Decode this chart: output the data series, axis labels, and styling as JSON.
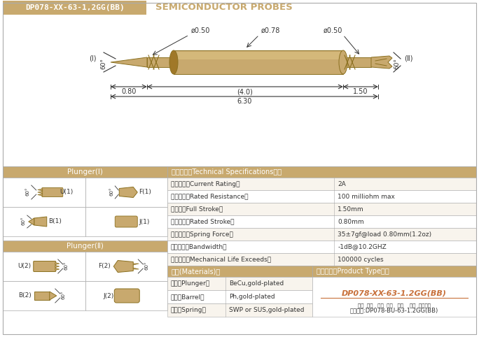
{
  "title_box_text": "DP078-XX-63-1,2GG(BB)",
  "title_subtitle": "SEMICONDUCTOR PROBES",
  "gold": "#C8A96E",
  "gold_edge": "#8B7020",
  "gold_dark": "#A07828",
  "gold_light": "#D4B87A",
  "bg": "#FFFFFF",
  "text_dark": "#333333",
  "gray_border": "#AAAAAA",
  "dims": {
    "d_left": "ø0.50",
    "d_mid": "ø0.78",
    "d_right": "ø0.50",
    "len_left": "0.80",
    "len_mid": "(4.0)",
    "len_right": "1.50",
    "len_total": "6.30",
    "label_I": "(Ⅰ)",
    "label_II": "(Ⅱ)"
  },
  "plunger_I_header": "Plunger(Ⅰ)",
  "plunger_II_header": "Plunger(Ⅱ)",
  "spec_header": "技术要求（Technical Specifications）：",
  "specs": [
    [
      "额定电流（Current Rating）",
      "2A"
    ],
    [
      "额定电阔（Rated Resistance）",
      "100 milliohm max"
    ],
    [
      "满行程（Full Stroke）",
      "1.50mm"
    ],
    [
      "额定行程（Rated Stroke）",
      "0.80mm"
    ],
    [
      "额定弹力（Spring Force）",
      "35±7gf@load 0.80mm(1.2oz)"
    ],
    [
      "频率带宽（Bandwidth）",
      "-1dB@10.2GHZ"
    ],
    [
      "测试寿命（Mechanical Life Exceeds）",
      "100000 cycles"
    ]
  ],
  "materials_header": "材质(Materials)：",
  "materials": [
    [
      "针头（Plunger）",
      "BeCu,gold-plated"
    ],
    [
      "针管（Barrel）",
      "Ph,gold-plated"
    ],
    [
      "弹簧（Spring）",
      "SWP or SUS,gold-plated"
    ]
  ],
  "product_type_header": "成品型号（Product Type）：",
  "product_type_main": "DP078-XX-63-1.2GG(BB)",
  "product_type_sub": "系列  规格   头型  针长   弹力    镜金  针头材质",
  "product_type_example": "订购举例:DP078-BU-63-1.2GG(BB)"
}
